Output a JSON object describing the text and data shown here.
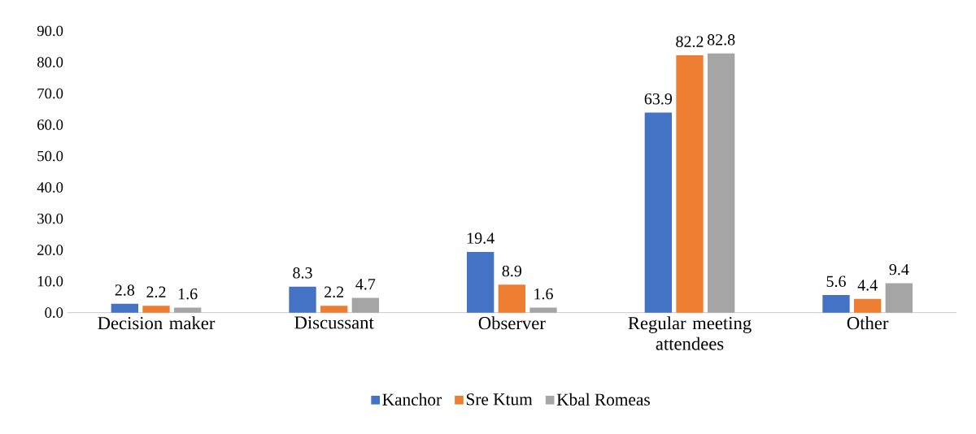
{
  "chart_data": {
    "type": "bar",
    "categories": [
      "Decision maker",
      "Discussant",
      "Observer",
      "Regular meeting attendees",
      "Other"
    ],
    "series": [
      {
        "name": "Kanchor",
        "color": "#4472c4",
        "values": [
          2.8,
          8.3,
          19.4,
          63.9,
          5.6
        ]
      },
      {
        "name": "Sre Ktum",
        "color": "#ed7d31",
        "values": [
          2.2,
          2.2,
          8.9,
          82.2,
          4.4
        ]
      },
      {
        "name": "Kbal Romeas",
        "color": "#a5a5a5",
        "values": [
          1.6,
          4.7,
          1.6,
          82.8,
          9.4
        ]
      }
    ],
    "ylim": [
      0,
      90
    ],
    "yticks": [
      {
        "value": 0,
        "label": "0.0"
      },
      {
        "value": 10,
        "label": "10.0"
      },
      {
        "value": 20,
        "label": "20.0"
      },
      {
        "value": 30,
        "label": "30.0"
      },
      {
        "value": 40,
        "label": "40.0"
      },
      {
        "value": 50,
        "label": "50.0"
      },
      {
        "value": 60,
        "label": "60.0"
      },
      {
        "value": 70,
        "label": "70.0"
      },
      {
        "value": 80,
        "label": "80.0"
      },
      {
        "value": 90,
        "label": "90.0"
      }
    ],
    "data_labels": true,
    "legend": "bottom"
  }
}
